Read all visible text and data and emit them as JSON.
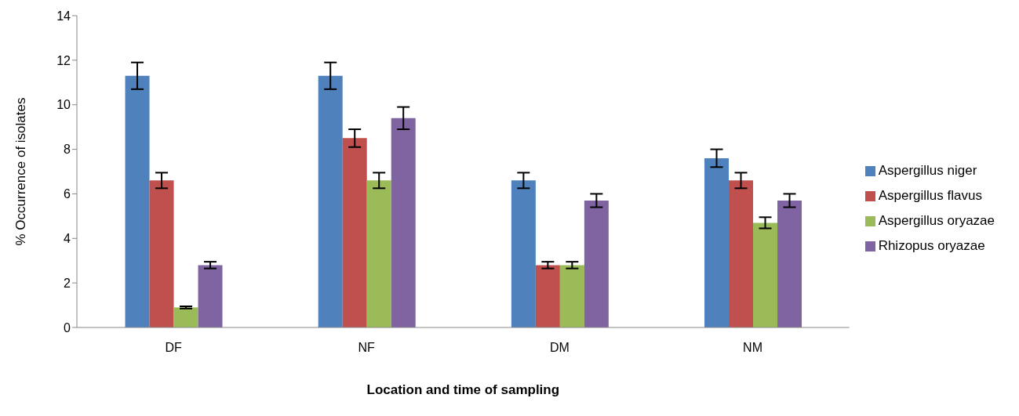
{
  "chart_data": {
    "type": "bar",
    "xlabel": "Location and time of sampling",
    "ylabel": "% Occurrence of isolates",
    "categories": [
      "DF",
      "NF",
      "DM",
      "NM"
    ],
    "series": [
      {
        "name": "Aspergillus niger",
        "color": "#4f81bd",
        "values": [
          11.3,
          11.3,
          6.6,
          7.6
        ],
        "errors": [
          0.6,
          0.6,
          0.35,
          0.4
        ]
      },
      {
        "name": "Aspergillus flavus",
        "color": "#c0504d",
        "values": [
          6.6,
          8.5,
          2.8,
          6.6
        ],
        "errors": [
          0.35,
          0.4,
          0.15,
          0.35
        ]
      },
      {
        "name": "Aspergillus oryazae",
        "color": "#9bbb59",
        "values": [
          0.9,
          6.6,
          2.8,
          4.7
        ],
        "errors": [
          0.05,
          0.35,
          0.15,
          0.25
        ]
      },
      {
        "name": "Rhizopus oryazae",
        "color": "#8064a2",
        "values": [
          2.8,
          9.4,
          5.7,
          5.7
        ],
        "errors": [
          0.15,
          0.5,
          0.3,
          0.3
        ]
      }
    ],
    "ylim": [
      0,
      14
    ],
    "yticks": [
      0,
      2,
      4,
      6,
      8,
      10,
      12,
      14
    ],
    "grid": false,
    "legend": "right"
  }
}
